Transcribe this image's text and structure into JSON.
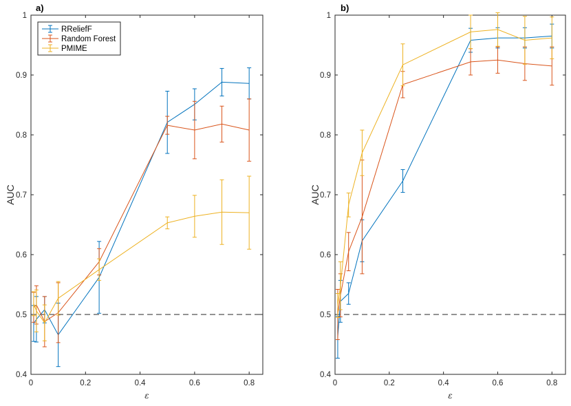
{
  "colors": {
    "RReliefF": "#0072BD",
    "Random Forest": "#D95319",
    "PMIME": "#EDB120",
    "axis": "#262626"
  },
  "chart_data": [
    {
      "type": "line",
      "panel_label": "a)",
      "xlabel": "ε",
      "ylabel": "AUC",
      "xlim": [
        0,
        0.85
      ],
      "ylim": [
        0.4,
        1.0
      ],
      "xticks": [
        0,
        0.2,
        0.4,
        0.6,
        0.8
      ],
      "xtick_labels": [
        "0",
        "0.2",
        "0.4",
        "0.6",
        "0.8"
      ],
      "yticks": [
        0.4,
        0.5,
        0.6,
        0.7,
        0.8,
        0.9,
        1.0
      ],
      "ytick_labels": [
        "0.4",
        "0.5",
        "0.6",
        "0.7",
        "0.8",
        "0.9",
        "1"
      ],
      "reference_line": 0.5,
      "legend": {
        "placement": "top-left",
        "entries": [
          "RReliefF",
          "Random Forest",
          "PMIME"
        ]
      },
      "x": [
        0.01,
        0.02,
        0.05,
        0.1,
        0.25,
        0.5,
        0.6,
        0.7,
        0.8
      ],
      "series": [
        {
          "name": "RReliefF",
          "values": [
            0.485,
            0.492,
            0.508,
            0.466,
            0.562,
            0.821,
            0.851,
            0.888,
            0.886
          ],
          "err": [
            0.03,
            0.038,
            0.022,
            0.053,
            0.06,
            0.052,
            0.026,
            0.023,
            0.026
          ]
        },
        {
          "name": "Random Forest",
          "values": [
            0.512,
            0.516,
            0.488,
            0.503,
            0.588,
            0.816,
            0.808,
            0.818,
            0.808
          ],
          "err": [
            0.025,
            0.032,
            0.042,
            0.05,
            0.022,
            0.015,
            0.048,
            0.03,
            0.052
          ]
        },
        {
          "name": "PMIME",
          "values": [
            0.518,
            0.506,
            0.486,
            0.527,
            0.575,
            0.653,
            0.664,
            0.671,
            0.67
          ],
          "err": [
            0.02,
            0.035,
            0.03,
            0.028,
            0.018,
            0.01,
            0.035,
            0.054,
            0.061
          ]
        }
      ]
    },
    {
      "type": "line",
      "panel_label": "b)",
      "xlabel": "ε",
      "ylabel": "AUC",
      "xlim": [
        0,
        0.85
      ],
      "ylim": [
        0.4,
        1.0
      ],
      "xticks": [
        0,
        0.2,
        0.4,
        0.6,
        0.8
      ],
      "xtick_labels": [
        "0",
        "0.2",
        "0.4",
        "0.6",
        "0.8"
      ],
      "yticks": [
        0.4,
        0.5,
        0.6,
        0.7,
        0.8,
        0.9,
        1.0
      ],
      "ytick_labels": [
        "0.4",
        "0.5",
        "0.6",
        "0.7",
        "0.8",
        "0.9",
        "1"
      ],
      "reference_line": 0.5,
      "x": [
        0.01,
        0.02,
        0.05,
        0.1,
        0.25,
        0.5,
        0.6,
        0.7,
        0.8
      ],
      "series": [
        {
          "name": "RReliefF",
          "values": [
            0.462,
            0.522,
            0.535,
            0.623,
            0.723,
            0.958,
            0.962,
            0.962,
            0.965
          ],
          "err": [
            0.035,
            0.035,
            0.018,
            0.035,
            0.019,
            0.02,
            0.017,
            0.017,
            0.02
          ]
        },
        {
          "name": "Random Forest",
          "values": [
            0.5,
            0.532,
            0.605,
            0.663,
            0.884,
            0.922,
            0.925,
            0.919,
            0.915
          ],
          "err": [
            0.042,
            0.036,
            0.032,
            0.095,
            0.022,
            0.022,
            0.022,
            0.028,
            0.032
          ]
        },
        {
          "name": "PMIME",
          "values": [
            0.515,
            0.548,
            0.683,
            0.77,
            0.917,
            0.972,
            0.976,
            0.958,
            0.962
          ],
          "err": [
            0.02,
            0.04,
            0.02,
            0.038,
            0.035,
            0.028,
            0.028,
            0.04,
            0.035
          ]
        }
      ]
    }
  ]
}
